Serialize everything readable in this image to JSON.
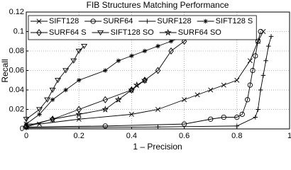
{
  "chart_data": {
    "type": "line",
    "title": "FIB Structures Matching Performance",
    "x_label": "1 – Precision",
    "y_label": "Recall",
    "xlim": [
      0,
      1
    ],
    "ylim": [
      0,
      0.12
    ],
    "xticks": [
      0,
      0.2,
      0.4,
      0.6,
      0.8,
      1
    ],
    "yticks": [
      0,
      0.02,
      0.04,
      0.06,
      0.08,
      0.1,
      0.12
    ],
    "grid": true,
    "legend": "top-left",
    "series": [
      {
        "name": "SIFT128",
        "color": "#000000",
        "marker": "x",
        "x": [
          0,
          0.05,
          0.2,
          0.4,
          0.5,
          0.6,
          0.65,
          0.7,
          0.75,
          0.8,
          0.85,
          0.88,
          0.9
        ],
        "values": [
          0.005,
          0.005,
          0.01,
          0.015,
          0.02,
          0.03,
          0.035,
          0.04,
          0.045,
          0.05,
          0.07,
          0.09,
          0.1
        ]
      },
      {
        "name": "SURF64",
        "color": "#000000",
        "marker": "circle",
        "x": [
          0,
          0.3,
          0.6,
          0.7,
          0.75,
          0.8,
          0.82,
          0.84,
          0.85,
          0.86,
          0.87,
          0.88,
          0.89
        ],
        "values": [
          0.002,
          0.003,
          0.005,
          0.01,
          0.012,
          0.012,
          0.015,
          0.03,
          0.045,
          0.06,
          0.075,
          0.09,
          0.1
        ]
      },
      {
        "name": "SURF128",
        "color": "#000000",
        "marker": "plus",
        "x": [
          0,
          0.5,
          0.8,
          0.87,
          0.88,
          0.89,
          0.9,
          0.91,
          0.92,
          0.93
        ],
        "values": [
          0.001,
          0.002,
          0.003,
          0.012,
          0.02,
          0.04,
          0.055,
          0.07,
          0.085,
          0.095
        ]
      },
      {
        "name": "SIFT128 S",
        "color": "#000000",
        "marker": "asterisk",
        "x": [
          0,
          0.05,
          0.1,
          0.15,
          0.2,
          0.3,
          0.35,
          0.4,
          0.45,
          0.5,
          0.55,
          0.6,
          0.65
        ],
        "values": [
          0.005,
          0.015,
          0.03,
          0.04,
          0.05,
          0.06,
          0.07,
          0.075,
          0.08,
          0.085,
          0.09,
          0.095,
          0.1
        ]
      },
      {
        "name": "SURF64 S",
        "color": "#000000",
        "marker": "diamond",
        "x": [
          0,
          0.1,
          0.2,
          0.3,
          0.4,
          0.45,
          0.5,
          0.55,
          0.6,
          0.63
        ],
        "values": [
          0.003,
          0.01,
          0.02,
          0.03,
          0.04,
          0.05,
          0.06,
          0.08,
          0.09,
          0.1
        ]
      },
      {
        "name": "SIFT128 SO",
        "color": "#000000",
        "marker": "triangle-down",
        "x": [
          0,
          0.05,
          0.08,
          0.1,
          0.12,
          0.15,
          0.18,
          0.2,
          0.22
        ],
        "values": [
          0.01,
          0.02,
          0.03,
          0.04,
          0.05,
          0.06,
          0.07,
          0.08,
          0.085
        ]
      },
      {
        "name": "SURF64 SO",
        "color": "#000000",
        "marker": "star",
        "x": [
          0,
          0.1,
          0.2,
          0.3,
          0.35,
          0.4,
          0.42,
          0.45
        ],
        "values": [
          0.002,
          0.01,
          0.015,
          0.02,
          0.03,
          0.04,
          0.045,
          0.05
        ]
      }
    ]
  }
}
